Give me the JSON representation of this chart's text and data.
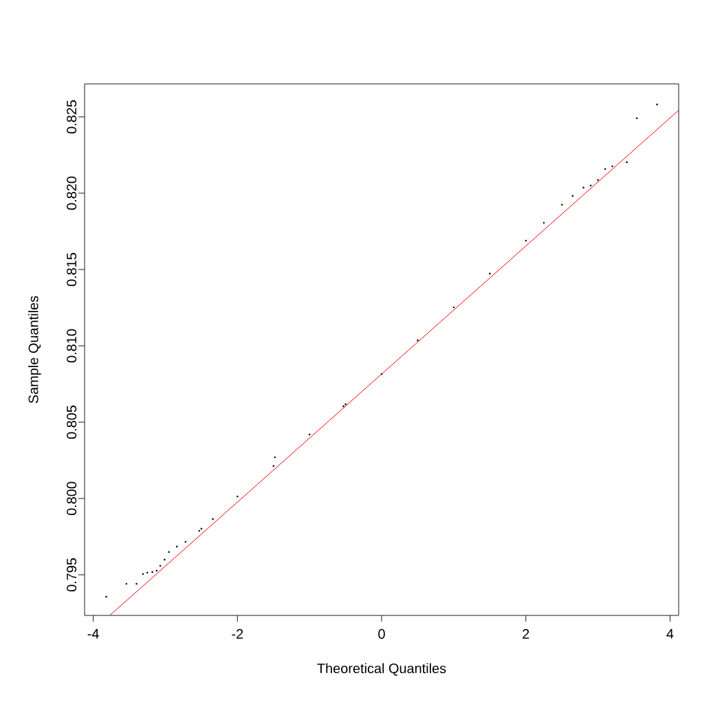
{
  "chart_data": {
    "type": "scatter",
    "xlabel": "Theoretical Quantiles",
    "ylabel": "Sample Quantiles",
    "xlim": [
      -4.12,
      4.12
    ],
    "ylim": [
      0.79234,
      0.82716
    ],
    "xticks": [
      -4,
      -2,
      0,
      2,
      4
    ],
    "yticks": [
      0.795,
      {
        "value": 0.8,
        "label": "0.800"
      },
      0.805,
      {
        "value": 0.81,
        "label": "0.810"
      },
      0.815,
      {
        "value": 0.82,
        "label": "0.820"
      },
      0.825
    ],
    "marker": "circle",
    "grid": false,
    "series": [
      {
        "color": "#000000",
        "x": [
          -3.82,
          -3.54,
          -3.4,
          -3.31,
          -3.25,
          -3.18,
          -3.12,
          -3.07,
          -3.01,
          -2.95,
          -2.84,
          -2.72,
          -2.53,
          -2.5,
          -2.34,
          -2.0,
          -1.5,
          -1.48,
          -1.0,
          -0.53,
          -0.5,
          0.0,
          0.5,
          1.0,
          1.5,
          2.0,
          2.25,
          2.5,
          2.65,
          2.8,
          2.9,
          3.0,
          3.1,
          3.2,
          3.4,
          3.54,
          3.82
        ],
        "values": [
          0.79356,
          0.79441,
          0.79441,
          0.79505,
          0.79514,
          0.79518,
          0.79527,
          0.79559,
          0.79599,
          0.79649,
          0.79685,
          0.79716,
          0.79788,
          0.79802,
          0.79865,
          0.80013,
          0.80212,
          0.8027,
          0.80419,
          0.80604,
          0.80617,
          0.80815,
          0.81036,
          0.81252,
          0.81473,
          0.81689,
          0.81806,
          0.81924,
          0.81982,
          0.82036,
          0.8205,
          0.82086,
          0.82158,
          0.82176,
          0.82203,
          0.82491,
          0.82581
        ]
      },
      {
        "type": "line",
        "color": "#ff0000",
        "line_style": "solid",
        "marker": "none",
        "x": [
          -3.77,
          4.12
        ],
        "values": [
          0.79234,
          0.82543
        ]
      }
    ]
  }
}
